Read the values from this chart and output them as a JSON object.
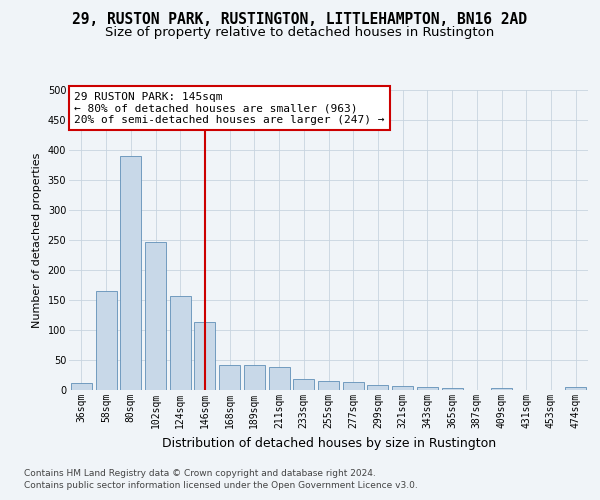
{
  "title": "29, RUSTON PARK, RUSTINGTON, LITTLEHAMPTON, BN16 2AD",
  "subtitle": "Size of property relative to detached houses in Rustington",
  "xlabel": "Distribution of detached houses by size in Rustington",
  "ylabel": "Number of detached properties",
  "categories": [
    "36sqm",
    "58sqm",
    "80sqm",
    "102sqm",
    "124sqm",
    "146sqm",
    "168sqm",
    "189sqm",
    "211sqm",
    "233sqm",
    "255sqm",
    "277sqm",
    "299sqm",
    "321sqm",
    "343sqm",
    "365sqm",
    "387sqm",
    "409sqm",
    "431sqm",
    "453sqm",
    "474sqm"
  ],
  "values": [
    12,
    165,
    390,
    247,
    157,
    113,
    42,
    42,
    38,
    18,
    15,
    13,
    8,
    6,
    5,
    3,
    0,
    3,
    0,
    0,
    5
  ],
  "bar_color": "#c8d8e8",
  "bar_edge_color": "#6090b8",
  "vline_x_index": 5,
  "vline_color": "#cc0000",
  "background_color": "#f0f4f8",
  "grid_color": "#c8d4e0",
  "annotation_text": "29 RUSTON PARK: 145sqm\n← 80% of detached houses are smaller (963)\n20% of semi-detached houses are larger (247) →",
  "annotation_box_color": "#ffffff",
  "annotation_box_edge": "#cc0000",
  "footer_line1": "Contains HM Land Registry data © Crown copyright and database right 2024.",
  "footer_line2": "Contains public sector information licensed under the Open Government Licence v3.0.",
  "ylim": [
    0,
    500
  ],
  "yticks": [
    0,
    50,
    100,
    150,
    200,
    250,
    300,
    350,
    400,
    450,
    500
  ],
  "title_fontsize": 10.5,
  "subtitle_fontsize": 9.5,
  "xlabel_fontsize": 9,
  "ylabel_fontsize": 8,
  "tick_fontsize": 7,
  "annotation_fontsize": 8,
  "footer_fontsize": 6.5
}
